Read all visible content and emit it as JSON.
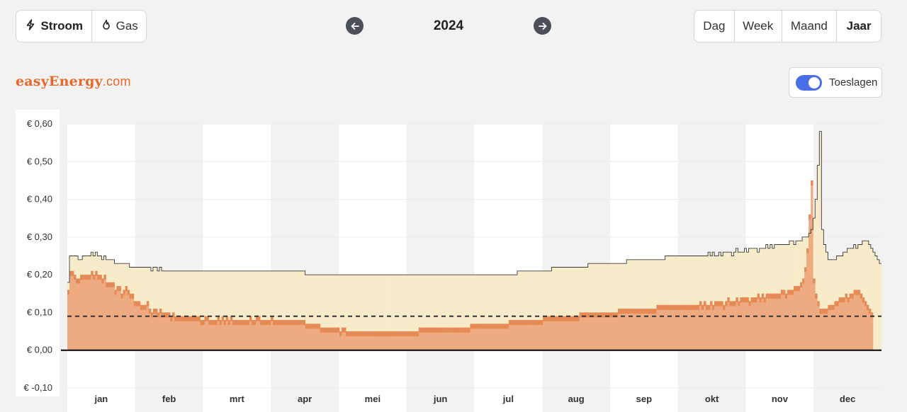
{
  "header": {
    "energy_tabs": [
      {
        "label": "Stroom",
        "icon": "lightning-icon",
        "active": true
      },
      {
        "label": "Gas",
        "icon": "flame-icon",
        "active": false
      }
    ],
    "year": "2024",
    "period_tabs": [
      {
        "label": "Dag",
        "active": false
      },
      {
        "label": "Week",
        "active": false
      },
      {
        "label": "Maand",
        "active": false
      },
      {
        "label": "Jaar",
        "active": true
      }
    ]
  },
  "brand": {
    "name_bold": "easyEnergy",
    "name_suffix": ".com",
    "color": "#e8672a"
  },
  "toggle": {
    "label": "Toeslagen",
    "on": true,
    "color": "#4a6ee8"
  },
  "colors": {
    "total_fill": "#f8ebca",
    "market_fill": "#eeaa80",
    "market_bar": "#e58a55",
    "baseline": "#000000",
    "average_line": "#333333"
  },
  "chart_data": {
    "type": "bar",
    "title": "",
    "xlabel": "",
    "ylabel": "",
    "ylim": [
      -0.1,
      0.6
    ],
    "ytick_labels": [
      "€ 0,60",
      "€ 0,50",
      "€ 0,40",
      "€ 0,30",
      "€ 0,20",
      "€ 0,10",
      "€ 0,00",
      "€ -0,10"
    ],
    "ytick_values": [
      0.6,
      0.5,
      0.4,
      0.3,
      0.2,
      0.1,
      0.0,
      -0.1
    ],
    "months": [
      "jan",
      "feb",
      "mrt",
      "apr",
      "mei",
      "jun",
      "jul",
      "aug",
      "sep",
      "okt",
      "nov",
      "dec"
    ],
    "average_line": 0.09,
    "series": [
      {
        "values": [
          0.16,
          0.21,
          0.21,
          0.2,
          0.19,
          0.19,
          0.2,
          0.2,
          0.2,
          0.2,
          0.2,
          0.21,
          0.2,
          0.21,
          0.2,
          0.2,
          0.19,
          0.2,
          0.18,
          0.18,
          0.18,
          0.18,
          0.16,
          0.17,
          0.17,
          0.15,
          0.16,
          0.17,
          0.16,
          0.15,
          0.15,
          0.13,
          0.13,
          0.13,
          0.12,
          0.12,
          0.12,
          0.13,
          0.11,
          0.1,
          0.11,
          0.11,
          0.1,
          0.11,
          0.1,
          0.1,
          0.1,
          0.1,
          0.09,
          0.1,
          0.09,
          0.09,
          0.09,
          0.09,
          0.09,
          0.09,
          0.09,
          0.09,
          0.09,
          0.09,
          0.09,
          0.09,
          0.08,
          0.08,
          0.09,
          0.09,
          0.08,
          0.08,
          0.08,
          0.08,
          0.09,
          0.08,
          0.09,
          0.08,
          0.09,
          0.08,
          0.09,
          0.08,
          0.08,
          0.08,
          0.08,
          0.08,
          0.08,
          0.08,
          0.08,
          0.09,
          0.08,
          0.08,
          0.09,
          0.09,
          0.08,
          0.08,
          0.08,
          0.08,
          0.08,
          0.09,
          0.08,
          0.08,
          0.08,
          0.08,
          0.08,
          0.08,
          0.08,
          0.08,
          0.08,
          0.08,
          0.08,
          0.08,
          0.08,
          0.08,
          0.08,
          0.07,
          0.07,
          0.07,
          0.07,
          0.07,
          0.07,
          0.07,
          0.06,
          0.06,
          0.06,
          0.06,
          0.06,
          0.06,
          0.06,
          0.06,
          0.06,
          0.05,
          0.06,
          0.06,
          0.05,
          0.05,
          0.05,
          0.05,
          0.05,
          0.05,
          0.05,
          0.05,
          0.05,
          0.05,
          0.05,
          0.05,
          0.05,
          0.05,
          0.05,
          0.05,
          0.05,
          0.05,
          0.05,
          0.05,
          0.05,
          0.05,
          0.05,
          0.05,
          0.05,
          0.05,
          0.05,
          0.05,
          0.05,
          0.05,
          0.05,
          0.05,
          0.05,
          0.05,
          0.06,
          0.06,
          0.06,
          0.06,
          0.06,
          0.06,
          0.06,
          0.06,
          0.06,
          0.06,
          0.06,
          0.06,
          0.06,
          0.06,
          0.06,
          0.06,
          0.06,
          0.06,
          0.06,
          0.06,
          0.06,
          0.06,
          0.06,
          0.06,
          0.07,
          0.07,
          0.07,
          0.07,
          0.07,
          0.07,
          0.07,
          0.07,
          0.07,
          0.07,
          0.07,
          0.07,
          0.07,
          0.07,
          0.07,
          0.07,
          0.07,
          0.07,
          0.08,
          0.08,
          0.08,
          0.08,
          0.08,
          0.08,
          0.08,
          0.08,
          0.08,
          0.08,
          0.08,
          0.08,
          0.08,
          0.08,
          0.08,
          0.08,
          0.09,
          0.09,
          0.09,
          0.09,
          0.09,
          0.09,
          0.09,
          0.09,
          0.09,
          0.09,
          0.09,
          0.09,
          0.09,
          0.09,
          0.09,
          0.09,
          0.09,
          0.1,
          0.1,
          0.1,
          0.1,
          0.1,
          0.1,
          0.1,
          0.1,
          0.1,
          0.1,
          0.1,
          0.1,
          0.1,
          0.1,
          0.1,
          0.1,
          0.1,
          0.1,
          0.11,
          0.11,
          0.11,
          0.11,
          0.11,
          0.11,
          0.11,
          0.11,
          0.11,
          0.11,
          0.11,
          0.11,
          0.11,
          0.11,
          0.11,
          0.11,
          0.11,
          0.11,
          0.12,
          0.12,
          0.12,
          0.12,
          0.12,
          0.12,
          0.12,
          0.12,
          0.12,
          0.12,
          0.12,
          0.12,
          0.12,
          0.12,
          0.12,
          0.12,
          0.12,
          0.12,
          0.12,
          0.12,
          0.13,
          0.12,
          0.13,
          0.12,
          0.12,
          0.13,
          0.12,
          0.13,
          0.13,
          0.13,
          0.13,
          0.12,
          0.13,
          0.14,
          0.13,
          0.13,
          0.13,
          0.14,
          0.13,
          0.14,
          0.14,
          0.14,
          0.14,
          0.13,
          0.14,
          0.14,
          0.14,
          0.15,
          0.14,
          0.15,
          0.14,
          0.15,
          0.15,
          0.15,
          0.15,
          0.15,
          0.15,
          0.15,
          0.16,
          0.16,
          0.15,
          0.16,
          0.16,
          0.16,
          0.17,
          0.17,
          0.17,
          0.18,
          0.19,
          0.22,
          0.27,
          0.36,
          0.45,
          0.19,
          0.15,
          0.13,
          0.11,
          0.11,
          0.11,
          0.11,
          0.12,
          0.12,
          0.12,
          0.13,
          0.13,
          0.14,
          0.14,
          0.14,
          0.15,
          0.14,
          0.15,
          0.15,
          0.16,
          0.16,
          0.16,
          0.15,
          0.14,
          0.13,
          0.12,
          0.11,
          0.1
        ],
        "color": "#e58a55"
      },
      {
        "values": [
          0.18,
          0.25,
          0.25,
          0.25,
          0.25,
          0.24,
          0.24,
          0.25,
          0.25,
          0.25,
          0.25,
          0.26,
          0.25,
          0.26,
          0.25,
          0.25,
          0.24,
          0.25,
          0.24,
          0.24,
          0.24,
          0.24,
          0.23,
          0.23,
          0.23,
          0.23,
          0.23,
          0.23,
          0.23,
          0.22,
          0.22,
          0.22,
          0.22,
          0.22,
          0.22,
          0.22,
          0.22,
          0.22,
          0.22,
          0.21,
          0.22,
          0.22,
          0.21,
          0.22,
          0.21,
          0.21,
          0.21,
          0.21,
          0.21,
          0.21,
          0.21,
          0.21,
          0.21,
          0.21,
          0.21,
          0.21,
          0.21,
          0.21,
          0.21,
          0.21,
          0.21,
          0.21,
          0.21,
          0.21,
          0.21,
          0.21,
          0.21,
          0.21,
          0.21,
          0.21,
          0.21,
          0.21,
          0.21,
          0.21,
          0.21,
          0.21,
          0.21,
          0.21,
          0.21,
          0.21,
          0.21,
          0.21,
          0.21,
          0.21,
          0.21,
          0.21,
          0.21,
          0.21,
          0.21,
          0.21,
          0.21,
          0.21,
          0.21,
          0.21,
          0.21,
          0.21,
          0.21,
          0.21,
          0.21,
          0.21,
          0.21,
          0.21,
          0.21,
          0.21,
          0.21,
          0.21,
          0.21,
          0.21,
          0.21,
          0.21,
          0.21,
          0.2,
          0.2,
          0.2,
          0.2,
          0.2,
          0.2,
          0.2,
          0.2,
          0.2,
          0.2,
          0.2,
          0.2,
          0.2,
          0.2,
          0.2,
          0.2,
          0.2,
          0.2,
          0.2,
          0.2,
          0.2,
          0.2,
          0.2,
          0.2,
          0.2,
          0.2,
          0.2,
          0.2,
          0.2,
          0.2,
          0.2,
          0.2,
          0.2,
          0.2,
          0.2,
          0.2,
          0.2,
          0.2,
          0.2,
          0.2,
          0.2,
          0.2,
          0.2,
          0.2,
          0.2,
          0.2,
          0.2,
          0.2,
          0.2,
          0.2,
          0.2,
          0.2,
          0.2,
          0.2,
          0.2,
          0.2,
          0.2,
          0.2,
          0.2,
          0.2,
          0.2,
          0.2,
          0.2,
          0.2,
          0.2,
          0.2,
          0.2,
          0.2,
          0.2,
          0.2,
          0.2,
          0.2,
          0.2,
          0.2,
          0.2,
          0.2,
          0.2,
          0.2,
          0.2,
          0.2,
          0.2,
          0.2,
          0.2,
          0.2,
          0.2,
          0.2,
          0.2,
          0.2,
          0.2,
          0.2,
          0.2,
          0.2,
          0.2,
          0.2,
          0.2,
          0.2,
          0.2,
          0.2,
          0.2,
          0.21,
          0.21,
          0.21,
          0.21,
          0.21,
          0.21,
          0.21,
          0.21,
          0.21,
          0.21,
          0.21,
          0.21,
          0.21,
          0.21,
          0.21,
          0.21,
          0.22,
          0.22,
          0.22,
          0.22,
          0.22,
          0.22,
          0.22,
          0.22,
          0.22,
          0.22,
          0.22,
          0.22,
          0.22,
          0.22,
          0.22,
          0.22,
          0.22,
          0.23,
          0.23,
          0.23,
          0.23,
          0.23,
          0.23,
          0.23,
          0.23,
          0.23,
          0.23,
          0.23,
          0.23,
          0.23,
          0.23,
          0.23,
          0.23,
          0.23,
          0.23,
          0.24,
          0.24,
          0.24,
          0.24,
          0.24,
          0.24,
          0.24,
          0.24,
          0.24,
          0.24,
          0.24,
          0.24,
          0.24,
          0.24,
          0.24,
          0.24,
          0.24,
          0.24,
          0.25,
          0.25,
          0.25,
          0.25,
          0.25,
          0.25,
          0.25,
          0.25,
          0.25,
          0.25,
          0.25,
          0.25,
          0.25,
          0.25,
          0.25,
          0.25,
          0.25,
          0.25,
          0.25,
          0.25,
          0.26,
          0.25,
          0.26,
          0.25,
          0.25,
          0.26,
          0.25,
          0.26,
          0.26,
          0.26,
          0.26,
          0.25,
          0.26,
          0.27,
          0.26,
          0.26,
          0.26,
          0.27,
          0.26,
          0.27,
          0.27,
          0.27,
          0.27,
          0.26,
          0.27,
          0.27,
          0.27,
          0.28,
          0.27,
          0.28,
          0.27,
          0.28,
          0.28,
          0.28,
          0.28,
          0.28,
          0.28,
          0.28,
          0.29,
          0.29,
          0.28,
          0.29,
          0.29,
          0.29,
          0.3,
          0.3,
          0.3,
          0.31,
          0.32,
          0.35,
          0.4,
          0.49,
          0.58,
          0.32,
          0.28,
          0.26,
          0.24,
          0.24,
          0.24,
          0.24,
          0.25,
          0.25,
          0.25,
          0.26,
          0.26,
          0.27,
          0.27,
          0.27,
          0.28,
          0.27,
          0.28,
          0.28,
          0.29,
          0.29,
          0.29,
          0.28,
          0.27,
          0.26,
          0.25,
          0.24,
          0.23
        ],
        "color": "#f8ebca"
      }
    ]
  }
}
